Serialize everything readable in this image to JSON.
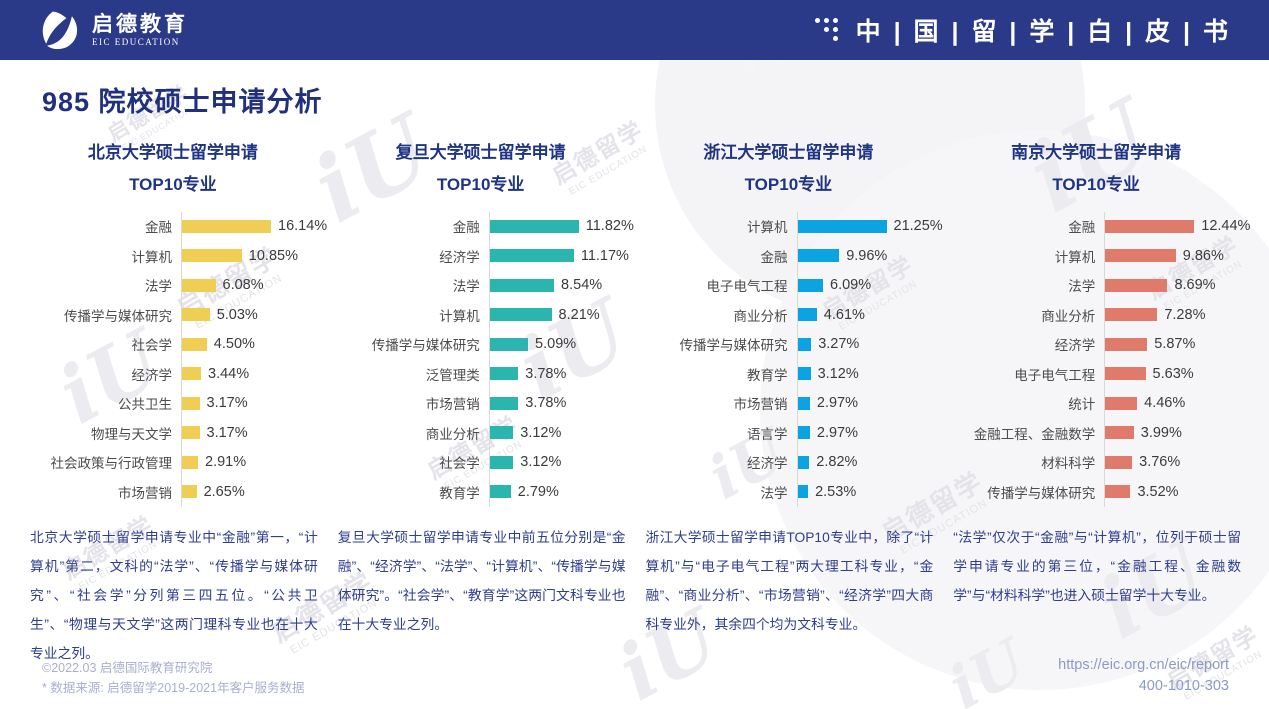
{
  "header": {
    "logo_cn": "启德教育",
    "logo_en": "EIC EDUCATION",
    "banner_title": "中 | 国 | 留 | 学 | 白 | 皮 | 书"
  },
  "page_title": "985 院校硕士申请分析",
  "watermark": {
    "cn": "启德留学",
    "en": "EIC EDUCATION",
    "glyph": "iU"
  },
  "chart_data": [
    {
      "type": "bar",
      "orientation": "horizontal",
      "title": "北京大学硕士留学申请TOP10专业",
      "title_line1": "北京大学硕士留学申请",
      "title_line2": "TOP10专业",
      "color": "#F0CE54",
      "unit": "%",
      "xlim": [
        0,
        17
      ],
      "grid": false,
      "legend": "none",
      "categories": [
        "金融",
        "计算机",
        "法学",
        "传播学与媒体研究",
        "社会学",
        "经济学",
        "公共卫生",
        "物理与天文学",
        "社会政策与行政管理",
        "市场营销"
      ],
      "values": [
        16.14,
        10.85,
        6.08,
        5.03,
        4.5,
        3.44,
        3.17,
        3.17,
        2.91,
        2.65
      ],
      "labels": [
        "16.14%",
        "10.85%",
        "6.08%",
        "5.03%",
        "4.50%",
        "3.44%",
        "3.17%",
        "3.17%",
        "2.91%",
        "2.65%"
      ],
      "note": "北京大学硕士留学申请专业中“金融”第一，“计算机”第二，文科的“法学”、“传播学与媒体研究”、“社会学”分列第三四五位。“公共卫生”、“物理与天文学”这两门理科专业也在十大专业之列。"
    },
    {
      "type": "bar",
      "orientation": "horizontal",
      "title": "复旦大学硕士留学申请TOP10专业",
      "title_line1": "复旦大学硕士留学申请",
      "title_line2": "TOP10专业",
      "color": "#2BB5AF",
      "unit": "%",
      "xlim": [
        0,
        12.5
      ],
      "grid": false,
      "legend": "none",
      "categories": [
        "金融",
        "经济学",
        "法学",
        "计算机",
        "传播学与媒体研究",
        "泛管理类",
        "市场营销",
        "商业分析",
        "社会学",
        "教育学"
      ],
      "values": [
        11.82,
        11.17,
        8.54,
        8.21,
        5.09,
        3.78,
        3.78,
        3.12,
        3.12,
        2.79
      ],
      "labels": [
        "11.82%",
        "11.17%",
        "8.54%",
        "8.21%",
        "5.09%",
        "3.78%",
        "3.78%",
        "3.12%",
        "3.12%",
        "2.79%"
      ],
      "note": "复旦大学硕士留学申请专业中前五位分别是“金融”、“经济学”、“法学”、“计算机”、“传播学与媒体研究”。“社会学”、“教育学”这两门文科专业也在十大专业之列。"
    },
    {
      "type": "bar",
      "orientation": "horizontal",
      "title": "浙江大学硕士留学申请TOP10专业",
      "title_line1": "浙江大学硕士留学申请",
      "title_line2": "TOP10专业",
      "color": "#0BA3E2",
      "unit": "%",
      "xlim": [
        0,
        22
      ],
      "grid": false,
      "legend": "none",
      "categories": [
        "计算机",
        "金融",
        "电子电气工程",
        "商业分析",
        "传播学与媒体研究",
        "教育学",
        "市场营销",
        "语言学",
        "经济学",
        "法学"
      ],
      "values": [
        21.25,
        9.96,
        6.09,
        4.61,
        3.27,
        3.12,
        2.97,
        2.97,
        2.82,
        2.53
      ],
      "labels": [
        "21.25%",
        "9.96%",
        "6.09%",
        "4.61%",
        "3.27%",
        "3.12%",
        "2.97%",
        "2.97%",
        "2.82%",
        "2.53%"
      ],
      "note": "浙江大学硕士留学申请TOP10专业中，除了“计算机”与“电子电气工程”两大理工科专业，“金融”、“商业分析”、“市场营销”、“经济学”四大商科专业外，其余四个均为文科专业。"
    },
    {
      "type": "bar",
      "orientation": "horizontal",
      "title": "南京大学硕士留学申请TOP10专业",
      "title_line1": "南京大学硕士留学申请",
      "title_line2": "TOP10专业",
      "color": "#E07B6C",
      "unit": "%",
      "xlim": [
        0,
        13
      ],
      "grid": false,
      "legend": "none",
      "categories": [
        "金融",
        "计算机",
        "法学",
        "商业分析",
        "经济学",
        "电子电气工程",
        "统计",
        "金融工程、金融数学",
        "材料科学",
        "传播学与媒体研究"
      ],
      "values": [
        12.44,
        9.86,
        8.69,
        7.28,
        5.87,
        5.63,
        4.46,
        3.99,
        3.76,
        3.52
      ],
      "labels": [
        "12.44%",
        "9.86%",
        "8.69%",
        "7.28%",
        "5.87%",
        "5.63%",
        "4.46%",
        "3.99%",
        "3.76%",
        "3.52%"
      ],
      "note": "“法学”仅次于“金融”与“计算机”，位列于硕士留学申请专业的第三位，“金融工程、金融数学”与“材料科学”也进入硕士留学十大专业。"
    }
  ],
  "footer": {
    "copyright": "©2022.03 启德国际教育研究院",
    "source": "* 数据来源: 启德留学2019-2021年客户服务数据",
    "url": "https://eic.org.cn/eic/report",
    "phone": "400-1010-303"
  }
}
